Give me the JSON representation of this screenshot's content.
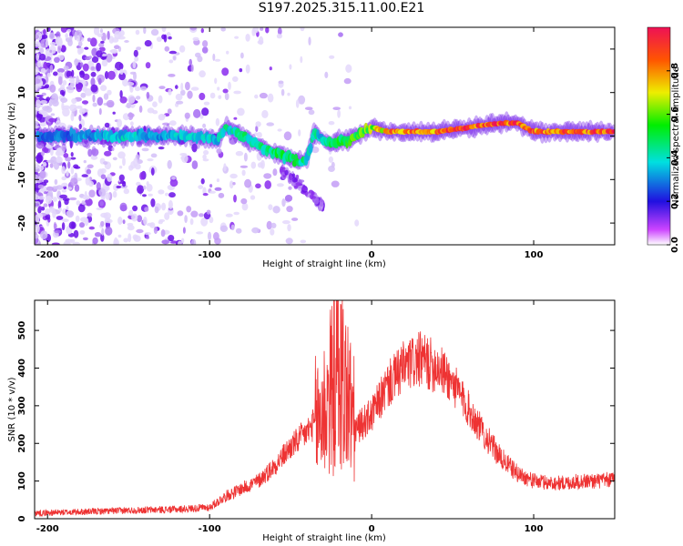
{
  "title": "S197.2025.315.11.00.E21",
  "colors": {
    "snr_line": "#ee3333",
    "spectrogram_low": "#d8c8f8",
    "spectrogram_mid": "#8c1cf0",
    "spectrogram_core": "#4020e0"
  },
  "chart_data": [
    {
      "type": "heatmap",
      "name": "spectrogram",
      "xlabel": "Height of straight line (km)",
      "ylabel": "Frequency (Hz)",
      "xlim": [
        -208,
        150
      ],
      "ylim": [
        -25,
        25
      ],
      "xticks": [
        -200,
        -100,
        0,
        100
      ],
      "yticks": [
        -20,
        -10,
        0,
        10,
        20
      ],
      "xtick_labels": [
        "-200",
        "-100",
        "0",
        "100"
      ],
      "ytick_labels": [
        "-20",
        "-10",
        "0",
        "10",
        "20"
      ],
      "colorbar": {
        "label": "Normalized spectral amplitude",
        "range": [
          0,
          1
        ],
        "ticks": [
          0.0,
          0.2,
          0.4,
          0.6,
          0.8
        ],
        "tick_labels": [
          "0.0",
          "0.2",
          "0.4",
          "0.6",
          "0.8"
        ]
      },
      "ridge": {
        "x": [
          -190,
          -170,
          -150,
          -130,
          -110,
          -95,
          -90,
          -80,
          -70,
          -60,
          -50,
          -45,
          -40,
          -35,
          -30,
          -25,
          -20,
          -15,
          -10,
          -5,
          0,
          10,
          20,
          40,
          60,
          80,
          90,
          95,
          100,
          110,
          130,
          150
        ],
        "y": [
          0,
          0,
          0,
          0,
          0,
          -1,
          2,
          0,
          -2,
          -4,
          -5,
          -6,
          -5,
          1,
          -1,
          -2,
          -1,
          -1,
          0,
          1,
          2,
          1,
          1,
          1,
          2,
          3,
          3,
          2,
          1,
          1,
          1,
          1
        ],
        "amplitude": [
          0.3,
          0.35,
          0.4,
          0.35,
          0.4,
          0.4,
          0.45,
          0.45,
          0.5,
          0.5,
          0.5,
          0.5,
          0.45,
          0.45,
          0.4,
          0.5,
          0.55,
          0.6,
          0.6,
          0.65,
          0.65,
          0.85,
          0.9,
          0.9,
          0.95,
          0.95,
          1.0,
          0.85,
          0.9,
          0.95,
          0.95,
          0.95
        ]
      }
    },
    {
      "type": "line",
      "name": "snr",
      "xlabel": "Height of straight line (km)",
      "ylabel": "SNR (10 * v/v)",
      "xlim": [
        -208,
        150
      ],
      "ylim": [
        0,
        580
      ],
      "xticks": [
        -200,
        -100,
        0,
        100
      ],
      "yticks": [
        0,
        100,
        200,
        300,
        400,
        500
      ],
      "xtick_labels": [
        "-200",
        "-100",
        "0",
        "100"
      ],
      "ytick_labels": [
        "0",
        "100",
        "200",
        "300",
        "400",
        "500"
      ],
      "envelope": {
        "x": [
          -208,
          -180,
          -150,
          -120,
          -100,
          -90,
          -80,
          -70,
          -60,
          -50,
          -40,
          -30,
          -25,
          -20,
          -15,
          -10,
          -5,
          0,
          10,
          20,
          30,
          40,
          50,
          60,
          70,
          80,
          90,
          100,
          110,
          120,
          130,
          140,
          150
        ],
        "y": [
          15,
          18,
          22,
          25,
          30,
          60,
          80,
          100,
          140,
          190,
          230,
          280,
          340,
          390,
          330,
          240,
          260,
          280,
          360,
          410,
          430,
          410,
          360,
          290,
          220,
          160,
          120,
          100,
          95,
          95,
          100,
          100,
          105
        ]
      }
    }
  ]
}
